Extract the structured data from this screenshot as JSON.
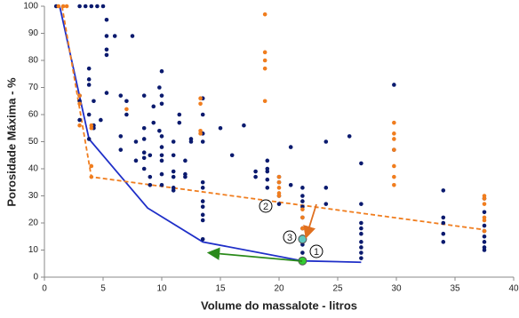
{
  "chart_data": {
    "type": "scatter",
    "x_label": "Volume do massalote - litros",
    "y_label": "Porosidade Máxima - %",
    "xlim": [
      0,
      40
    ],
    "xticks": [
      0,
      5,
      10,
      15,
      20,
      25,
      30,
      35,
      40
    ],
    "ylim": [
      0,
      100
    ],
    "yticks": [
      0,
      10,
      20,
      30,
      40,
      50,
      60,
      70,
      80,
      90,
      100
    ],
    "annotations": [
      "1",
      "2",
      "3"
    ],
    "series": [
      {
        "style": "scatter",
        "color": "#0a1a6e",
        "x": [
          1,
          3,
          3,
          3,
          3,
          3.5,
          4,
          4.5,
          5,
          3.8,
          3.8,
          3.8,
          3.8,
          3.8,
          4.2,
          4.2,
          4.2,
          4.8,
          5.3,
          5.3,
          5.3,
          5.3,
          5.3,
          6,
          6.5,
          6.5,
          6.5,
          7,
          7,
          7.5,
          7.8,
          7.8,
          8.5,
          8.5,
          8.5,
          8.5,
          8.5,
          8.5,
          9,
          9,
          9,
          9.3,
          9.3,
          9.8,
          9.8,
          10,
          10,
          10,
          10,
          10,
          10,
          10,
          10,
          10,
          11,
          11,
          11,
          11,
          11,
          11,
          11.5,
          11.5,
          12,
          12,
          12,
          12.5,
          12.5,
          13.5,
          13.5,
          13.5,
          13.5,
          13.5,
          13.5,
          13.5,
          13.5,
          13.5,
          13.5,
          13.5,
          15,
          16,
          17,
          18,
          18,
          19,
          19,
          19,
          19,
          19,
          20,
          20,
          20,
          20,
          21,
          21,
          22,
          22,
          22,
          22,
          22,
          22,
          22,
          22,
          22,
          24,
          24,
          24,
          26,
          27,
          27,
          27,
          27,
          27,
          27,
          27,
          27,
          27,
          29.8,
          29.8,
          34,
          34,
          34,
          34,
          34,
          37.5,
          37.5,
          37.5,
          37.5,
          37.5,
          37.5,
          37.5,
          37.5
        ],
        "values": [
          100,
          100,
          67,
          58,
          65,
          100,
          100,
          100,
          100,
          77,
          73,
          71,
          60,
          51,
          65,
          56,
          55,
          58,
          95,
          89,
          84,
          82,
          68,
          89,
          67,
          52,
          47,
          65,
          60,
          89,
          50,
          43,
          67,
          55,
          51,
          46,
          44,
          40,
          45,
          37,
          34,
          63,
          57,
          70,
          54,
          76,
          67,
          64,
          52,
          48,
          45,
          43,
          38,
          34,
          50,
          45,
          39,
          37,
          33,
          32,
          60,
          57,
          43,
          38,
          37,
          51,
          50,
          66,
          60,
          53,
          50,
          35,
          33,
          28,
          26,
          23,
          21,
          14,
          55,
          45,
          56,
          39,
          37,
          43,
          40,
          39,
          36,
          33,
          37,
          35,
          30,
          27,
          48,
          34,
          33,
          30,
          28,
          26,
          22,
          18,
          15,
          12,
          9,
          50,
          33,
          27,
          52,
          42,
          27,
          20,
          18,
          16,
          13,
          11,
          9,
          7,
          71,
          47,
          32,
          22,
          20,
          16,
          13,
          29,
          24,
          19,
          17,
          15,
          13,
          11,
          10
        ]
      },
      {
        "style": "scatter",
        "color": "#f07d1e",
        "x": [
          1.2,
          1.6,
          1.9,
          3,
          3,
          3,
          4,
          4,
          4,
          4,
          7,
          13.3,
          13.3,
          13.3,
          13.3,
          18.8,
          18.8,
          18.8,
          18.8,
          18.8,
          20,
          20,
          20,
          20,
          20,
          22,
          22,
          22,
          22,
          29.8,
          29.8,
          29.8,
          29.8,
          29.8,
          29.8,
          29.8,
          37.5,
          37.5,
          37.5,
          37.5,
          37.5,
          37.5
        ],
        "values": [
          100,
          100,
          100,
          67,
          64,
          56,
          56,
          55,
          41,
          37,
          62,
          66,
          64,
          54,
          53,
          97,
          83,
          80,
          77,
          65,
          37,
          35,
          33,
          31,
          30,
          25,
          22,
          18,
          15,
          57,
          53,
          51,
          47,
          41,
          37,
          34,
          30,
          29,
          27,
          22,
          21,
          17
        ]
      },
      {
        "style": "line",
        "color": "#1f2fc8",
        "dashed": false,
        "x": [
          1.3,
          3.8,
          8.8,
          13.5,
          22,
          27
        ],
        "values": [
          100,
          51,
          25.5,
          13,
          6,
          5.5
        ]
      },
      {
        "style": "line",
        "color": "#f07d1e",
        "dashed": true,
        "x": [
          1.5,
          4,
          37.5
        ],
        "values": [
          100,
          37,
          17.5
        ]
      },
      {
        "style": "scatter",
        "color": "#33cc33",
        "size": 4.5,
        "x": [
          22
        ],
        "values": [
          6
        ]
      },
      {
        "style": "scatter",
        "color": "#5fc8c0",
        "size": 4.5,
        "x": [
          22
        ],
        "values": [
          14
        ]
      }
    ]
  }
}
